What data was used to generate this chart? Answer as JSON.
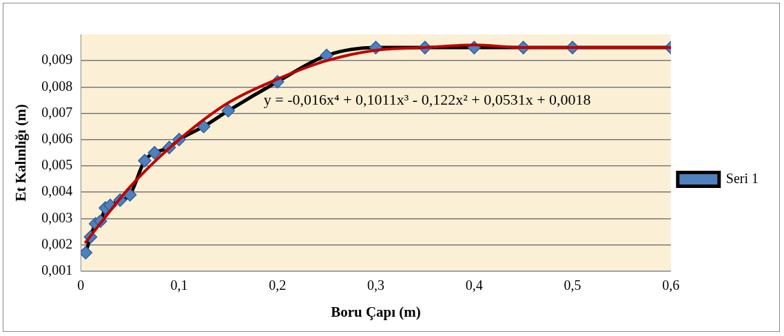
{
  "chart_data": {
    "type": "line",
    "xlabel": "Boru Çapı (m)",
    "ylabel": "Et Kalınlığı (m)",
    "xlim": [
      0,
      0.6
    ],
    "xticks": [
      0,
      {
        "value": 0.1,
        "label": "0,1"
      },
      {
        "value": 0.2,
        "label": "0,2"
      },
      {
        "value": 0.3,
        "label": "0,3"
      },
      {
        "value": 0.4,
        "label": "0,4"
      },
      {
        "value": 0.5,
        "label": "0,5"
      },
      {
        "value": 0.6,
        "label": "0,6"
      }
    ],
    "ylim": [
      0.001,
      0.01
    ],
    "yticks": [
      {
        "value": 0.001,
        "label": "0,001"
      },
      {
        "value": 0.002,
        "label": "0,002"
      },
      {
        "value": 0.003,
        "label": "0,003"
      },
      {
        "value": 0.004,
        "label": "0,004"
      },
      {
        "value": 0.005,
        "label": "0,005"
      },
      {
        "value": 0.006,
        "label": "0,006"
      },
      {
        "value": 0.007,
        "label": "0,007"
      },
      {
        "value": 0.008,
        "label": "0,008"
      },
      {
        "value": 0.009,
        "label": "0,009"
      }
    ],
    "grid": "y",
    "legend": "right",
    "marker": "diamond",
    "line_style": "solid",
    "series": [
      {
        "name": "Seri 1",
        "color": "#000000",
        "x": [
          0.005,
          0.01,
          0.015,
          0.02,
          0.025,
          0.03,
          0.04,
          0.05,
          0.065,
          0.075,
          0.09,
          0.1,
          0.125,
          0.15,
          0.2,
          0.25,
          0.3,
          0.35,
          0.4,
          0.45,
          0.5,
          0.6
        ],
        "values": [
          0.0017,
          0.0023,
          0.0028,
          0.0029,
          0.0034,
          0.0035,
          0.0037,
          0.0039,
          0.0052,
          0.0055,
          0.0057,
          0.006,
          0.0065,
          0.0071,
          0.0082,
          0.0092,
          0.0095,
          0.0095,
          0.0095,
          0.0095,
          0.0095,
          0.0095
        ]
      },
      {
        "marker": "none",
        "color": "#c00000",
        "x": [
          0.005,
          0.05,
          0.1,
          0.15,
          0.2,
          0.25,
          0.3,
          0.35,
          0.4,
          0.45,
          0.5,
          0.6
        ],
        "values": [
          0.0021,
          0.0042,
          0.006,
          0.0074,
          0.0083,
          0.009,
          0.0094,
          0.0095,
          0.0096,
          0.0095,
          0.0095,
          0.0095
        ]
      }
    ],
    "annotations": [
      "y = -0,016x⁴ + 0,1011x³ - 0,122x² + 0,0531x + 0,0018"
    ]
  }
}
